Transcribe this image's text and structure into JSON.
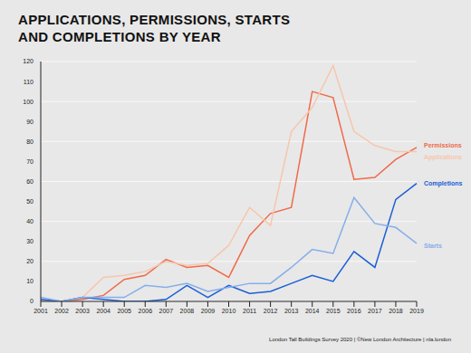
{
  "chart_data": {
    "type": "line",
    "title": "APPLICATIONS, PERMISSIONS, STARTS AND COMPLETIONS BY YEAR",
    "footer": "London Tall Buildings Survey 2020 | ©New London Architecture | nla.london",
    "categories": [
      "2001",
      "2002",
      "2003",
      "2004",
      "2005",
      "2006",
      "2007",
      "2008",
      "2009",
      "2010",
      "2011",
      "2012",
      "2013",
      "2014",
      "2015",
      "2016",
      "2017",
      "2018",
      "2019"
    ],
    "series": [
      {
        "name": "Permissions",
        "color": "#f06a4a",
        "values": [
          0,
          0,
          1,
          3,
          11,
          13,
          21,
          17,
          18,
          12,
          33,
          44,
          47,
          105,
          102,
          61,
          62,
          71,
          77
        ]
      },
      {
        "name": "Applications",
        "color": "#f7c6ad",
        "values": [
          0,
          0,
          2,
          12,
          13,
          15,
          20,
          18,
          19,
          28,
          47,
          38,
          85,
          97,
          118,
          85,
          78,
          75,
          75
        ]
      },
      {
        "name": "Completions",
        "color": "#1a5fd6",
        "values": [
          1,
          0,
          2,
          1,
          0,
          0,
          1,
          8,
          2,
          8,
          4,
          5,
          9,
          13,
          10,
          25,
          17,
          51,
          59
        ]
      },
      {
        "name": "Starts",
        "color": "#85aeea",
        "values": [
          2,
          0,
          2,
          2,
          2,
          8,
          7,
          9,
          5,
          7,
          9,
          9,
          17,
          26,
          24,
          52,
          39,
          37,
          29
        ]
      }
    ],
    "ylim": [
      0,
      120
    ],
    "yticks": [
      0,
      10,
      20,
      30,
      40,
      50,
      60,
      70,
      80,
      90,
      100,
      110,
      120
    ],
    "grid": true
  }
}
